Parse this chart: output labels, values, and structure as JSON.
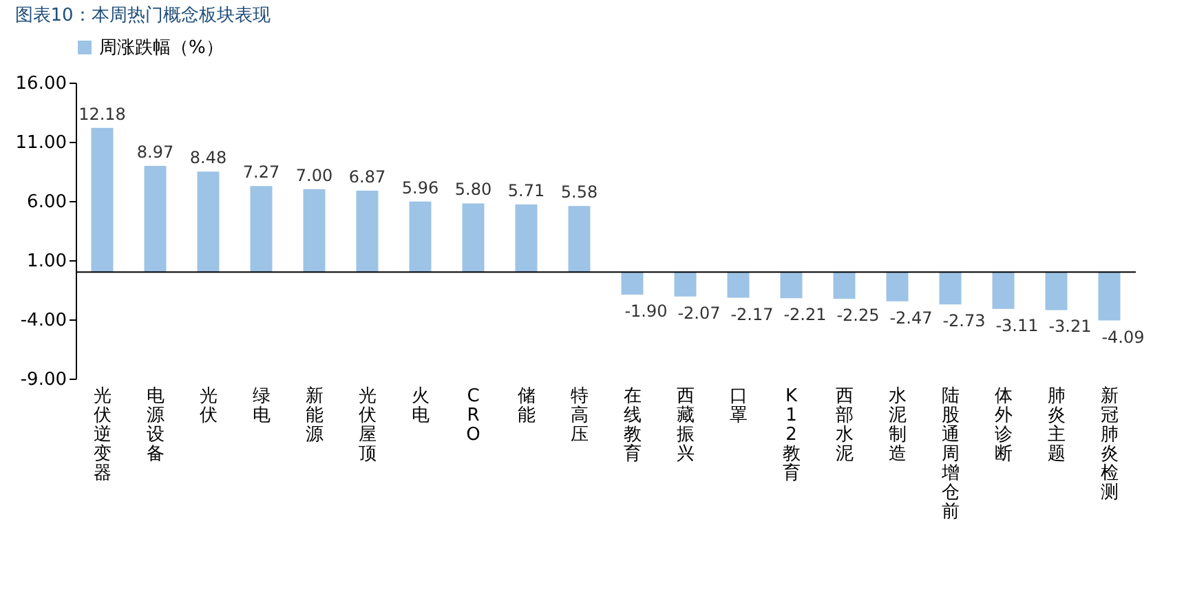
{
  "chart_data": {
    "type": "bar",
    "title": "图表10：本周热门概念板块表现",
    "categories": [
      "光伏逆变器",
      "电源设备",
      "光伏",
      "绿电",
      "新能源",
      "光伏屋顶",
      "火电",
      "CRO",
      "储能",
      "特高压",
      "在线教育",
      "西藏振兴",
      "口罩",
      "K12教育",
      "西部水泥",
      "水泥制造",
      "陆股通周增仓前",
      "体外诊断",
      "肺炎主题",
      "新冠肺炎检测"
    ],
    "series": [
      {
        "name": "周涨跌幅（%）",
        "color": "#9dc3e6",
        "values": [
          12.18,
          8.97,
          8.48,
          7.27,
          7.0,
          6.87,
          5.96,
          5.8,
          5.71,
          5.58,
          -1.9,
          -2.07,
          -2.17,
          -2.21,
          -2.25,
          -2.47,
          -2.73,
          -3.11,
          -3.21,
          -4.09
        ],
        "value_labels": [
          "12.18",
          "8.97",
          "8.48",
          "7.27",
          "7.00",
          "6.87",
          "5.96",
          "5.80",
          "5.71",
          "5.58",
          "-1.90",
          "-2.07",
          "-2.17",
          "-2.21",
          "-2.25",
          "-2.47",
          "-2.73",
          "-3.11",
          "-3.21",
          "-4.09"
        ]
      }
    ],
    "ylim": [
      -9,
      16
    ],
    "yticks": [
      {
        "value": -9,
        "label": "-9.00"
      },
      {
        "value": -4,
        "label": "-4.00"
      },
      {
        "value": 1,
        "label": "1.00"
      },
      {
        "value": 6,
        "label": "6.00"
      },
      {
        "value": 11,
        "label": "11.00"
      },
      {
        "value": 16,
        "label": "16.00"
      }
    ],
    "grid": false,
    "legend": "top"
  }
}
